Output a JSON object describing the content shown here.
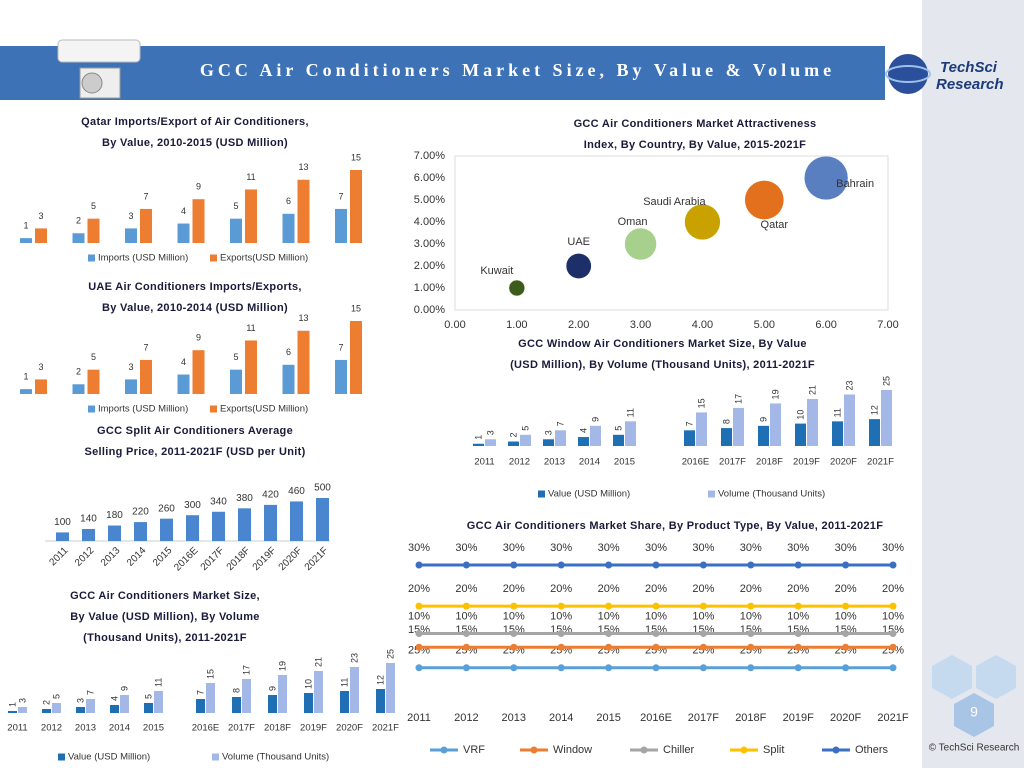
{
  "header": {
    "title": "GCC Air Conditioners Market Size, By Value & Volume"
  },
  "logo": {
    "line1": "TechSci",
    "line2": "Research"
  },
  "page_number": "9",
  "copyright": "© TechSci Research",
  "chart_data": [
    {
      "type": "bar",
      "title": "Qatar Imports/Export of Air Conditioners, By Value, 2010-2015 (USD Million)",
      "series": [
        {
          "name": "Imports (USD Million)",
          "color": "#5b9bd5",
          "values": [
            1,
            2,
            3,
            4,
            5,
            6,
            7
          ]
        },
        {
          "name": "Exports(USD Million)",
          "color": "#ed7d31",
          "values": [
            3,
            5,
            7,
            9,
            11,
            13,
            15
          ]
        }
      ]
    },
    {
      "type": "bar",
      "title": "UAE Air Conditioners Imports/Exports, By Value, 2010-2014 (USD Million)",
      "series": [
        {
          "name": "Imports (USD Million)",
          "color": "#5b9bd5",
          "values": [
            1,
            2,
            3,
            4,
            5,
            6,
            7
          ]
        },
        {
          "name": "Exports(USD Million)",
          "color": "#ed7d31",
          "values": [
            3,
            5,
            7,
            9,
            11,
            13,
            15
          ]
        }
      ]
    },
    {
      "type": "bar",
      "title": "GCC Split Air Conditioners Average Selling Price, 2011-2021F (USD per Unit)",
      "categories": [
        "2011",
        "2012",
        "2013",
        "2014",
        "2015",
        "2016E",
        "2017F",
        "2018F",
        "2019F",
        "2020F",
        "2021F"
      ],
      "values": [
        100,
        140,
        180,
        220,
        260,
        300,
        340,
        380,
        420,
        460,
        500
      ],
      "color": "#4a86cf"
    },
    {
      "type": "bar",
      "title": "GCC Air Conditioners Market Size, By Value (USD Million), By Volume (Thousand Units), 2011-2021F",
      "categories": [
        "2011",
        "2012",
        "2013",
        "2014",
        "2015",
        "2016E",
        "2017F",
        "2018F",
        "2019F",
        "2020F",
        "2021F"
      ],
      "series": [
        {
          "name": "Value (USD Million)",
          "color": "#1f6fb5",
          "values": [
            1,
            2,
            3,
            4,
            5,
            7,
            8,
            9,
            10,
            11,
            12
          ]
        },
        {
          "name": "Volume (Thousand Units)",
          "color": "#a3b8e6",
          "values": [
            3,
            5,
            7,
            9,
            11,
            15,
            17,
            19,
            21,
            23,
            25
          ]
        }
      ]
    },
    {
      "type": "scatter",
      "title": "GCC Air Conditioners Market Attractiveness Index, By Country, By Value, 2015-2021F",
      "labels": [
        "Kuwait",
        "UAE",
        "Oman",
        "Saudi Arabia",
        "Qatar",
        "Bahrain"
      ],
      "x": [
        1,
        2,
        3,
        4,
        5,
        6
      ],
      "values": [
        1,
        2,
        3,
        4,
        5,
        6
      ],
      "sizes": [
        1,
        2.5,
        4,
        5,
        6,
        7.5
      ],
      "colors": [
        "#3d5c1c",
        "#1c2f68",
        "#a8d08d",
        "#c9a200",
        "#e2701c",
        "#5a7fc0"
      ],
      "xlim": [
        0,
        7
      ],
      "xticks": [
        {
          "value": 0,
          "label": "0.00"
        },
        {
          "value": 1,
          "label": "1.00"
        },
        {
          "value": 2,
          "label": "2.00"
        },
        {
          "value": 3,
          "label": "3.00"
        },
        {
          "value": 4,
          "label": "4.00"
        },
        {
          "value": 5,
          "label": "5.00"
        },
        {
          "value": 6,
          "label": "6.00"
        },
        {
          "value": 7,
          "label": "7.00"
        }
      ],
      "ylim": [
        0,
        7
      ],
      "yticks": [
        {
          "value": 0,
          "label": "0.00%"
        },
        {
          "value": 1,
          "label": "1.00%"
        },
        {
          "value": 2,
          "label": "2.00%"
        },
        {
          "value": 3,
          "label": "3.00%"
        },
        {
          "value": 4,
          "label": "4.00%"
        },
        {
          "value": 5,
          "label": "5.00%"
        },
        {
          "value": 6,
          "label": "6.00%"
        },
        {
          "value": 7,
          "label": "7.00%"
        }
      ]
    },
    {
      "type": "bar",
      "title": "GCC Window Air Conditioners Market Size, By Value (USD Million), By Volume (Thousand Units), 2011-2021F",
      "categories": [
        "2011",
        "2012",
        "2013",
        "2014",
        "2015",
        "2016E",
        "2017F",
        "2018F",
        "2019F",
        "2020F",
        "2021F"
      ],
      "series": [
        {
          "name": "Value (USD Million)",
          "color": "#1f6fb5",
          "values": [
            1,
            2,
            3,
            4,
            5,
            7,
            8,
            9,
            10,
            11,
            12
          ]
        },
        {
          "name": "Volume (Thousand Units)",
          "color": "#a3b8e6",
          "values": [
            3,
            5,
            7,
            9,
            11,
            15,
            17,
            19,
            21,
            23,
            25
          ]
        }
      ]
    },
    {
      "type": "line",
      "stacked": true,
      "title": "GCC Air Conditioners Market Share, By Product Type, By Value, 2011-2021F",
      "categories": [
        "2011",
        "2012",
        "2013",
        "2014",
        "2015",
        "2016E",
        "2017F",
        "2018F",
        "2019F",
        "2020F",
        "2021F"
      ],
      "ylim": [
        0,
        100
      ],
      "series": [
        {
          "name": "VRF",
          "color": "#5aa0d8",
          "values": [
            25,
            25,
            25,
            25,
            25,
            25,
            25,
            25,
            25,
            25,
            25
          ],
          "value_labels": [
            "25%",
            "25%",
            "25%",
            "25%",
            "25%",
            "25%",
            "25%",
            "25%",
            "25%",
            "25%",
            "25%"
          ]
        },
        {
          "name": "Window",
          "color": "#ed7d31",
          "values": [
            15,
            15,
            15,
            15,
            15,
            15,
            15,
            15,
            15,
            15,
            15
          ],
          "value_labels": [
            "15%",
            "15%",
            "15%",
            "15%",
            "15%",
            "15%",
            "15%",
            "15%",
            "15%",
            "15%",
            "15%"
          ]
        },
        {
          "name": "Chiller",
          "color": "#a5a5a5",
          "values": [
            10,
            10,
            10,
            10,
            10,
            10,
            10,
            10,
            10,
            10,
            10
          ],
          "value_labels": [
            "10%",
            "10%",
            "10%",
            "10%",
            "10%",
            "10%",
            "10%",
            "10%",
            "10%",
            "10%",
            "10%"
          ]
        },
        {
          "name": "Split",
          "color": "#ffc000",
          "values": [
            20,
            20,
            20,
            20,
            20,
            20,
            20,
            20,
            20,
            20,
            20
          ],
          "value_labels": [
            "20%",
            "20%",
            "20%",
            "20%",
            "20%",
            "20%",
            "20%",
            "20%",
            "20%",
            "20%",
            "20%"
          ]
        },
        {
          "name": "Others",
          "color": "#3a6fc4",
          "values": [
            30,
            30,
            30,
            30,
            30,
            30,
            30,
            30,
            30,
            30,
            30
          ],
          "value_labels": [
            "30%",
            "30%",
            "30%",
            "30%",
            "30%",
            "30%",
            "30%",
            "30%",
            "30%",
            "30%",
            "30%"
          ]
        }
      ]
    }
  ]
}
